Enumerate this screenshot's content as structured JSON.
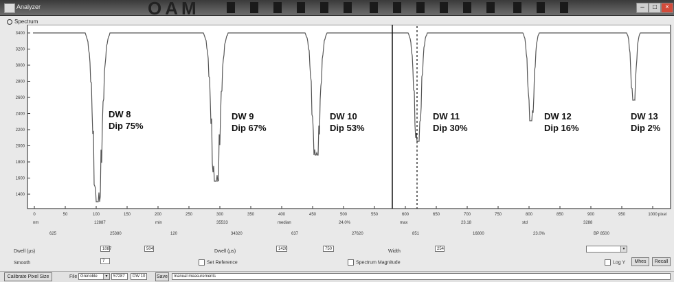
{
  "window": {
    "title": "Analyzer",
    "heading": "OAM",
    "buttons": {
      "minimize": "–",
      "maximize": "□",
      "close": "×"
    }
  },
  "plot": {
    "label": "Spectrum",
    "dips": [
      {
        "name": "DW 8",
        "dip": "Dip 75%"
      },
      {
        "name": "DW 9",
        "dip": "Dip 67%"
      },
      {
        "name": "DW 10",
        "dip": "Dip 53%"
      },
      {
        "name": "DW 11",
        "dip": "Dip 30%"
      },
      {
        "name": "DW 12",
        "dip": "Dip 16%"
      },
      {
        "name": "DW 13",
        "dip": "Dip 2%"
      }
    ],
    "y_ticks": [
      "3400",
      "3200",
      "3000",
      "2800",
      "2600",
      "2400",
      "2200",
      "2000",
      "1800",
      "1600",
      "1400"
    ],
    "x_ticks": [
      "0",
      "50",
      "100",
      "150",
      "200",
      "250",
      "300",
      "350",
      "400",
      "450",
      "500",
      "550",
      "600",
      "650",
      "700",
      "750",
      "800",
      "850",
      "900",
      "950",
      "1000"
    ],
    "x_unit": "pixel",
    "sub_row1": [
      "nm",
      "12887",
      "min",
      "35533",
      "median",
      "24.0%",
      "max",
      "23.18",
      "std",
      "3288"
    ],
    "sub_row2": [
      "625",
      "25380",
      "120",
      "34320",
      "637",
      "27620",
      "851",
      "16800",
      "23.0%",
      "BP 8500"
    ]
  },
  "controls": {
    "dwell_label": "Dwell (µs)",
    "dwell_values": [
      "1087",
      "504"
    ],
    "dwell_label_2": "Dwell (µs)",
    "dwell_values_2": [
      "1420",
      "750"
    ],
    "width_label": "Width",
    "width_value": "254",
    "smooth_label": "Smooth",
    "smooth_value": "7",
    "dropdown_value": "",
    "set_reference_label": "Set Reference",
    "spectrum_magnitude_label": "Spectrum Magnitude",
    "logy_label": "Log Y",
    "mhes_button": "Mhes",
    "recall_button": "Recall"
  },
  "bottom": {
    "calibrate_button": "Calibrate Pixel Size",
    "file_label": "File",
    "file_select": "Grenoble",
    "value1": "57287",
    "value2": "DW 10",
    "save_button": "Save",
    "notes_value": "manual measurements"
  }
}
